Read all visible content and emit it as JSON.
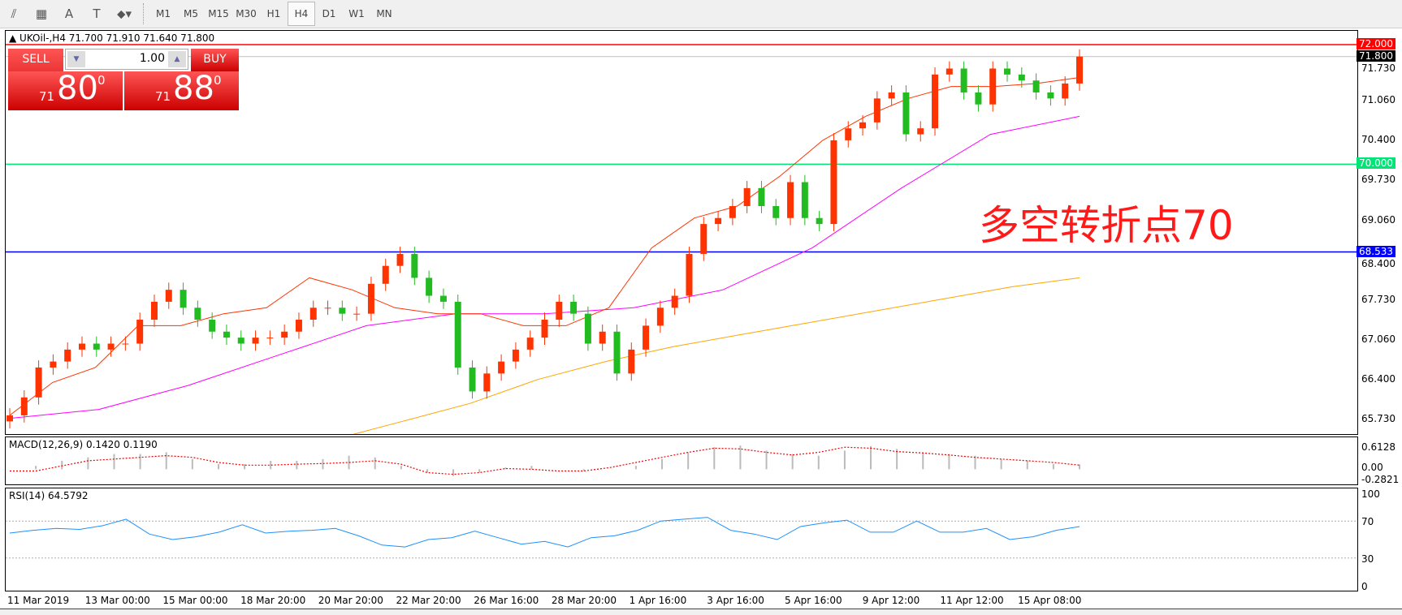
{
  "toolbar": {
    "icons": [
      "elliott-wave-icon",
      "fibonacci-icon",
      "text-icon",
      "text-label-icon",
      "arrows-dropdown-icon"
    ],
    "icon_glyphs": [
      "⫽",
      "▦",
      "A",
      "T",
      "⬥▾"
    ],
    "timeframes": [
      "M1",
      "M5",
      "M15",
      "M30",
      "H1",
      "H4",
      "D1",
      "W1",
      "MN"
    ],
    "active": "H4"
  },
  "chart": {
    "title": "UKOil-,H4  71.700 71.910 71.640 71.800",
    "trade": {
      "sell": "SELL",
      "buy": "BUY",
      "lot": "1.00",
      "sell_prefix": "71",
      "sell_big": "80",
      "sell_sup": "0",
      "buy_prefix": "71",
      "buy_big": "88",
      "buy_sup": "0"
    },
    "annotation": "多空转折点70",
    "price_ticks": [
      "71.730",
      "71.060",
      "70.400",
      "69.730",
      "69.060",
      "68.400",
      "67.730",
      "67.060",
      "66.400",
      "65.730"
    ],
    "levels": [
      {
        "value": "72.000",
        "color": "#ff0000"
      },
      {
        "value": "71.800",
        "color": "#000000",
        "line": "#c0c0c0"
      },
      {
        "value": "70.000",
        "color": "#00e676"
      },
      {
        "value": "68.533",
        "color": "#0000ff"
      }
    ],
    "time_labels": [
      "11 Mar 2019",
      "13 Mar 00:00",
      "15 Mar 00:00",
      "18 Mar 20:00",
      "20 Mar 20:00",
      "22 Mar 20:00",
      "26 Mar 16:00",
      "28 Mar 20:00",
      "1 Apr 16:00",
      "3 Apr 16:00",
      "5 Apr 16:00",
      "9 Apr 12:00",
      "11 Apr 12:00",
      "15 Apr 08:00"
    ],
    "macd": {
      "label": "MACD(12,26,9) 0.1420 0.1190",
      "ticks": [
        "0.6128",
        "0.00",
        "-0.2821"
      ]
    },
    "rsi": {
      "label": "RSI(14) 64.5792",
      "ticks": [
        "100",
        "70",
        "30",
        "0"
      ]
    }
  },
  "chart_data": {
    "type": "candlestick",
    "symbol": "UKOil-",
    "timeframe": "H4",
    "ylim": [
      65.4,
      72.2
    ],
    "up_color": "#ff3300",
    "down_color": "#22bb22",
    "closes": [
      65.8,
      66.1,
      66.6,
      66.7,
      66.9,
      67.0,
      66.9,
      67.0,
      67.0,
      67.4,
      67.7,
      67.9,
      67.6,
      67.4,
      67.2,
      67.1,
      67.0,
      67.1,
      67.1,
      67.2,
      67.4,
      67.6,
      67.6,
      67.5,
      67.5,
      68.0,
      68.3,
      68.5,
      68.1,
      67.8,
      67.7,
      66.6,
      66.2,
      66.5,
      66.7,
      66.9,
      67.1,
      67.4,
      67.7,
      67.5,
      67.0,
      67.2,
      66.5,
      66.9,
      67.3,
      67.6,
      67.8,
      68.5,
      69.0,
      69.1,
      69.3,
      69.6,
      69.3,
      69.1,
      69.7,
      69.1,
      69.0,
      70.4,
      70.6,
      70.7,
      71.1,
      71.2,
      70.5,
      70.6,
      71.5,
      71.6,
      71.2,
      71.0,
      71.6,
      71.5,
      71.4,
      71.2,
      71.1,
      71.35,
      71.8
    ],
    "ma_fast": [
      65.8,
      66.35,
      66.6,
      67.3,
      67.3,
      67.5,
      67.6,
      68.1,
      67.9,
      67.6,
      67.5,
      67.5,
      67.3,
      67.3,
      67.6,
      68.6,
      69.1,
      69.3,
      69.8,
      70.4,
      70.8,
      71.1,
      71.3,
      71.3,
      71.35,
      71.45
    ],
    "ma_fast_color": "#ff3300",
    "ma_mid": [
      65.75,
      65.9,
      66.3,
      66.8,
      67.3,
      67.5,
      67.5,
      67.6,
      67.9,
      68.6,
      69.6,
      70.5,
      70.8
    ],
    "ma_mid_color": "#ff00ff",
    "ma_slow": [
      65.4,
      65.7,
      66.0,
      66.4,
      66.7,
      66.95,
      67.15,
      67.35,
      67.55,
      67.75,
      67.95,
      68.1
    ],
    "ma_slow_color": "#ffa500",
    "macd_hist": [
      0.0,
      0.1,
      0.25,
      0.35,
      0.45,
      0.45,
      0.5,
      0.3,
      0.15,
      0.15,
      0.25,
      0.25,
      0.3,
      0.4,
      0.35,
      0.1,
      -0.1,
      -0.2,
      -0.1,
      0.05,
      0.1,
      0.0,
      -0.05,
      0.0,
      0.1,
      0.3,
      0.5,
      0.65,
      0.7,
      0.55,
      0.45,
      0.4,
      0.55,
      0.68,
      0.6,
      0.5,
      0.45,
      0.4,
      0.3,
      0.25,
      0.15,
      0.14
    ],
    "macd_signal": [
      -0.05,
      -0.05,
      0.1,
      0.25,
      0.3,
      0.35,
      0.4,
      0.35,
      0.2,
      0.12,
      0.12,
      0.15,
      0.17,
      0.2,
      0.25,
      0.15,
      -0.1,
      -0.15,
      -0.1,
      0.02,
      0.0,
      -0.05,
      -0.05,
      0.05,
      0.2,
      0.35,
      0.5,
      0.62,
      0.6,
      0.5,
      0.42,
      0.5,
      0.65,
      0.62,
      0.52,
      0.48,
      0.42,
      0.35,
      0.3,
      0.25,
      0.2,
      0.12
    ],
    "rsi": [
      57,
      60,
      62,
      61,
      65,
      72,
      56,
      50,
      53,
      58,
      66,
      57,
      59,
      60,
      62,
      54,
      44,
      42,
      50,
      52,
      59,
      52,
      45,
      48,
      42,
      52,
      54,
      60,
      70,
      72,
      74,
      60,
      56,
      50,
      64,
      68,
      71,
      58,
      58,
      70,
      58,
      58,
      62,
      50,
      53,
      60,
      64
    ]
  }
}
